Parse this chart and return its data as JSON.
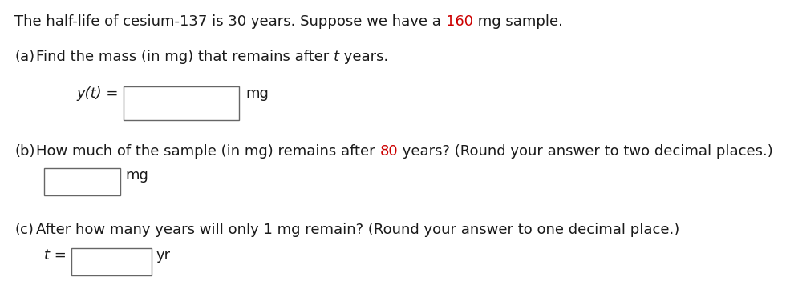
{
  "background_color": "#ffffff",
  "text_color": "#1a1a1a",
  "red_color": "#cc0000",
  "font_size": 13.0,
  "figsize": [
    9.8,
    3.56
  ],
  "dpi": 100,
  "line1_p1": "The half-life of cesium-137 is 30 years. Suppose we have a ",
  "line1_p2": "160",
  "line1_p3": " mg sample.",
  "part_a_p1": "Find the mass (in mg) that remains after ",
  "part_a_italic": "t",
  "part_a_p2": " years.",
  "part_b_p1": "How much of the sample (in mg) remains after ",
  "part_b_red": "80",
  "part_b_p2": " years? (Round your answer to two decimal places.)",
  "part_c": "After how many years will only 1 mg remain? (Round your answer to one decimal place.)"
}
